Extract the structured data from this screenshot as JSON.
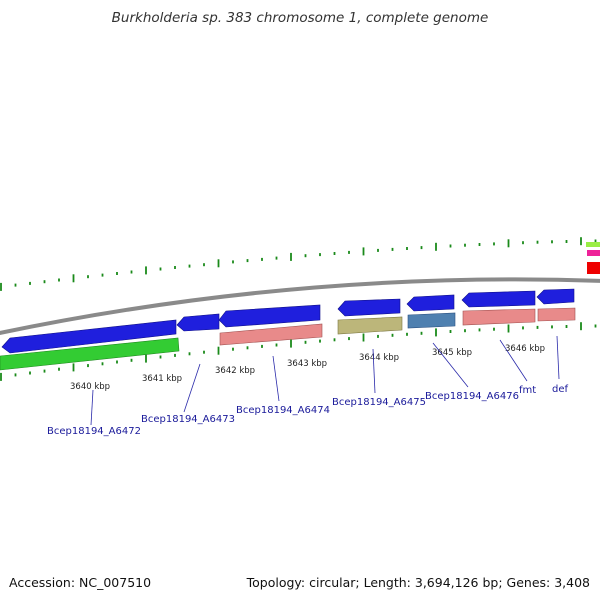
{
  "title": "Burkholderia sp. 383 chromosome 1, complete genome",
  "footer": {
    "accession": "Accession: NC_007510",
    "summary": "Topology: circular; Length: 3,694,126 bp; Genes: 3,408"
  },
  "colors": {
    "forward_gene": "#1f1fdd",
    "cds_pink": "#e88a8a",
    "cds_olive": "#bcb67a",
    "cds_steel": "#4f80b0",
    "rrna_green": "#33cc33",
    "backbone": "#8a8a8a",
    "tick": "#1a8a1a",
    "label": "#1a1a9a"
  },
  "scale_labels": [
    "3640 kbp",
    "3641 kbp",
    "3642 kbp",
    "3643 kbp",
    "3644 kbp",
    "3645 kbp",
    "3646 kbp"
  ],
  "genes": [
    {
      "label": "Bcep18194_A6472"
    },
    {
      "label": "Bcep18194_A6473"
    },
    {
      "label": "Bcep18194_A6474"
    },
    {
      "label": "Bcep18194_A6475"
    },
    {
      "label": "Bcep18194_A6476"
    },
    {
      "label": "fmt"
    },
    {
      "label": "def"
    }
  ]
}
